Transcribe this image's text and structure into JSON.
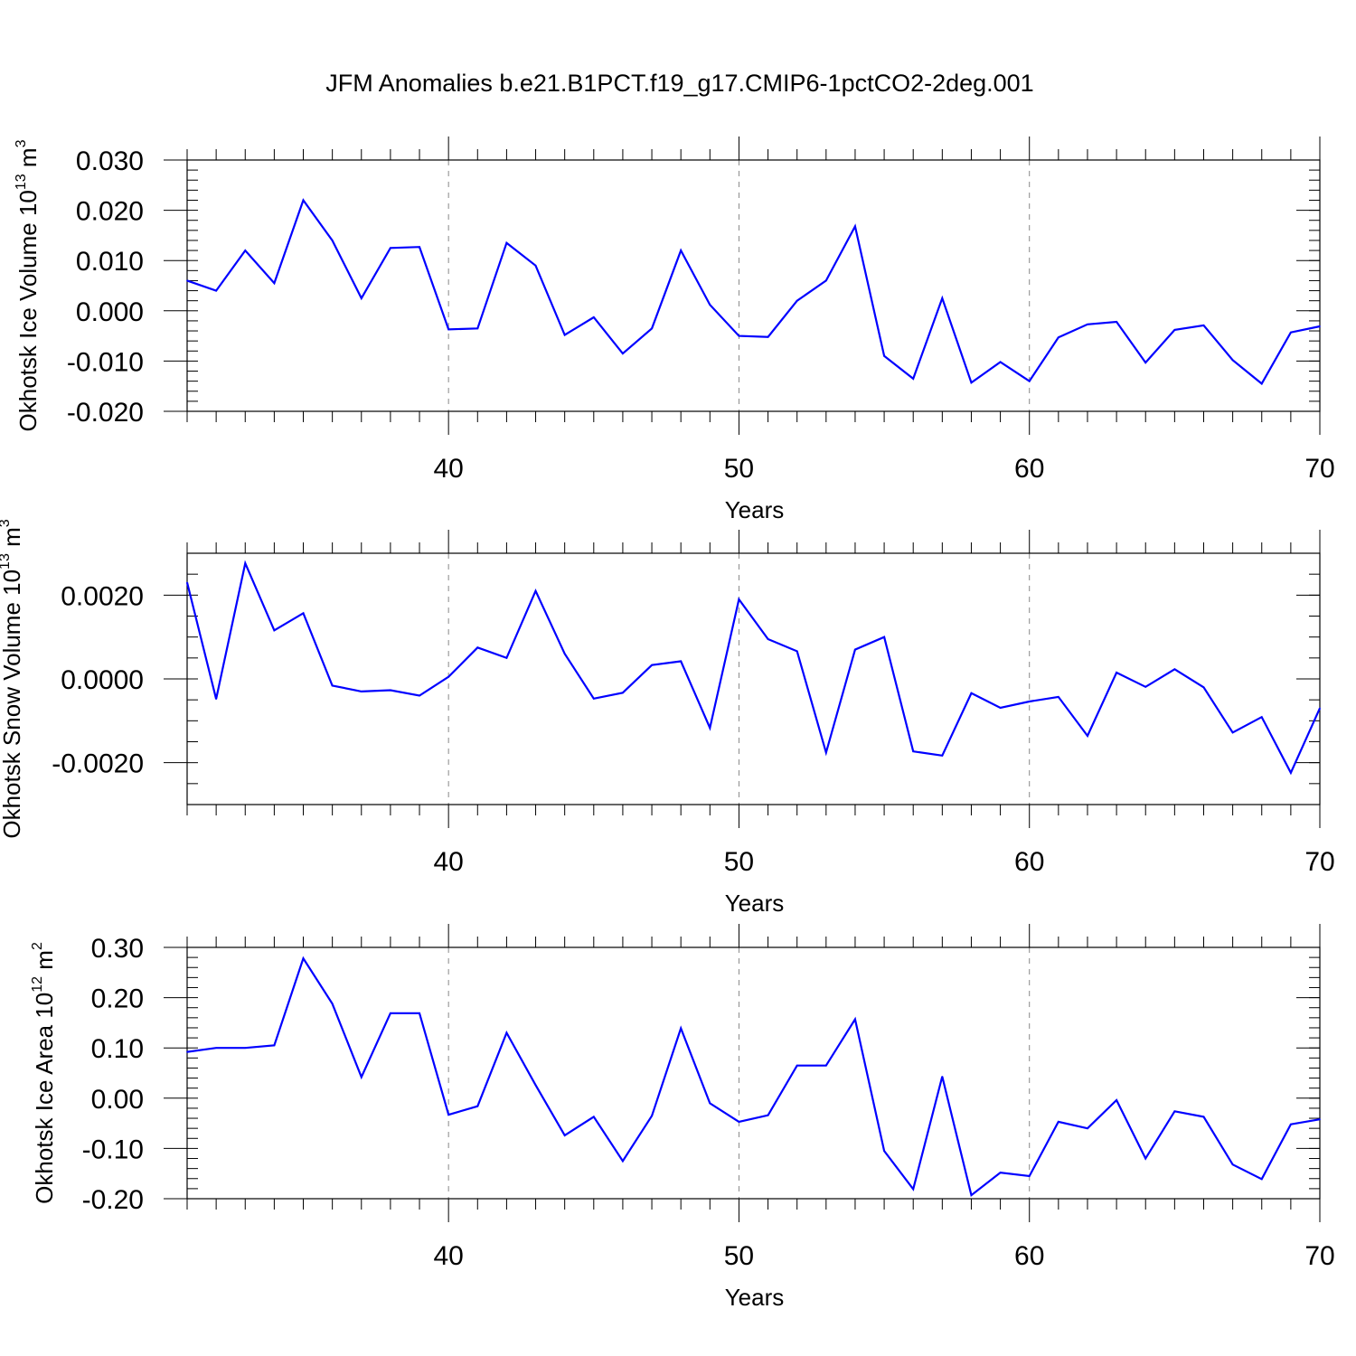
{
  "title": "JFM Anomalies b.e21.B1PCT.f19_g17.CMIP6-1pctCO2-2deg.001",
  "colors": {
    "line": "#0000ff",
    "axis": "#000000",
    "grid": "#888888"
  },
  "chart_data": [
    {
      "type": "line",
      "ylabel": {
        "text": "Okhotsk Ice Volume 10",
        "sup": "13",
        "unit": " m",
        "unit_sup": "3"
      },
      "xlabel": "Years",
      "xlim": [
        31,
        70
      ],
      "ylim": [
        -0.02,
        0.03
      ],
      "xticks": [
        40,
        50,
        60,
        70
      ],
      "xtick_labels": [
        "40",
        "50",
        "60",
        "70"
      ],
      "yticks": [
        -0.02,
        -0.01,
        0.0,
        0.01,
        0.02,
        0.03
      ],
      "ytick_labels": [
        "-0.020",
        "-0.010",
        "0.000",
        "0.010",
        "0.020",
        "0.030"
      ],
      "yminor_step": 0.002,
      "x": [
        31,
        32,
        33,
        34,
        35,
        36,
        37,
        38,
        39,
        40,
        41,
        42,
        43,
        44,
        45,
        46,
        47,
        48,
        49,
        50,
        51,
        52,
        53,
        54,
        55,
        56,
        57,
        58,
        59,
        60,
        61,
        62,
        63,
        64,
        65,
        66,
        67,
        68,
        69,
        70
      ],
      "series": [
        {
          "name": "Okhotsk Ice Volume",
          "values": [
            0.006,
            0.004,
            0.012,
            0.0055,
            0.022,
            0.014,
            0.0025,
            0.0125,
            0.0127,
            -0.0037,
            -0.0035,
            0.0135,
            0.009,
            -0.0048,
            -0.0013,
            -0.0085,
            -0.0035,
            0.012,
            0.0012,
            -0.005,
            -0.0052,
            0.002,
            0.006,
            0.0168,
            -0.009,
            -0.0135,
            0.0025,
            -0.0143,
            -0.0102,
            -0.014,
            -0.0053,
            -0.0027,
            -0.0022,
            -0.0103,
            -0.0038,
            -0.0029,
            -0.0098,
            -0.0145,
            -0.0043,
            -0.0031
          ]
        }
      ]
    },
    {
      "type": "line",
      "ylabel": {
        "text": "Okhotsk Snow Volume 10",
        "sup": "13",
        "unit": " m",
        "unit_sup": "3"
      },
      "xlabel": "Years",
      "xlim": [
        31,
        70
      ],
      "ylim": [
        -0.003,
        0.003
      ],
      "xticks": [
        40,
        50,
        60,
        70
      ],
      "xtick_labels": [
        "40",
        "50",
        "60",
        "70"
      ],
      "yticks": [
        -0.002,
        0.0,
        0.002
      ],
      "ytick_labels": [
        "-0.0020",
        "0.0000",
        "0.0020"
      ],
      "yminor_step": 0.0005,
      "x": [
        31,
        32,
        33,
        34,
        35,
        36,
        37,
        38,
        39,
        40,
        41,
        42,
        43,
        44,
        45,
        46,
        47,
        48,
        49,
        50,
        51,
        52,
        53,
        54,
        55,
        56,
        57,
        58,
        59,
        60,
        61,
        62,
        63,
        64,
        65,
        66,
        67,
        68,
        69,
        70
      ],
      "series": [
        {
          "name": "Okhotsk Snow Volume",
          "values": [
            0.0023,
            -0.00048,
            0.00276,
            0.00116,
            0.00157,
            -0.00016,
            -0.0003,
            -0.00027,
            -0.0004,
            5e-05,
            0.00075,
            0.0005,
            0.0021,
            0.0006,
            -0.00047,
            -0.00033,
            0.00033,
            0.00042,
            -0.00117,
            0.0019,
            0.00095,
            0.00066,
            -0.00176,
            0.0007,
            0.001,
            -0.00173,
            -0.00183,
            -0.00034,
            -0.00069,
            -0.00054,
            -0.00043,
            -0.00136,
            0.00015,
            -0.00019,
            0.00023,
            -0.0002,
            -0.00128,
            -0.00091,
            -0.00224,
            -0.0007
          ]
        }
      ]
    },
    {
      "type": "line",
      "ylabel": {
        "text": "Okhotsk Ice Area 10",
        "sup": "12",
        "unit": " m",
        "unit_sup": "2"
      },
      "xlabel": "Years",
      "xlim": [
        31,
        70
      ],
      "ylim": [
        -0.2,
        0.3
      ],
      "xticks": [
        40,
        50,
        60,
        70
      ],
      "xtick_labels": [
        "40",
        "50",
        "60",
        "70"
      ],
      "yticks": [
        -0.2,
        -0.1,
        0.0,
        0.1,
        0.2,
        0.3
      ],
      "ytick_labels": [
        "-0.20",
        "-0.10",
        "0.00",
        "0.10",
        "0.20",
        "0.30"
      ],
      "yminor_step": 0.02,
      "x": [
        31,
        32,
        33,
        34,
        35,
        36,
        37,
        38,
        39,
        40,
        41,
        42,
        43,
        44,
        45,
        46,
        47,
        48,
        49,
        50,
        51,
        52,
        53,
        54,
        55,
        56,
        57,
        58,
        59,
        60,
        61,
        62,
        63,
        64,
        65,
        66,
        67,
        68,
        69,
        70
      ],
      "series": [
        {
          "name": "Okhotsk Ice Area",
          "values": [
            0.092,
            0.1,
            0.1,
            0.105,
            0.278,
            0.188,
            0.042,
            0.169,
            0.169,
            -0.033,
            -0.016,
            0.13,
            0.026,
            -0.074,
            -0.037,
            -0.125,
            -0.035,
            0.139,
            -0.01,
            -0.047,
            -0.034,
            0.065,
            0.065,
            0.157,
            -0.105,
            -0.181,
            0.043,
            -0.193,
            -0.148,
            -0.155,
            -0.047,
            -0.06,
            -0.004,
            -0.12,
            -0.026,
            -0.037,
            -0.132,
            -0.161,
            -0.052,
            -0.042
          ]
        }
      ]
    }
  ]
}
